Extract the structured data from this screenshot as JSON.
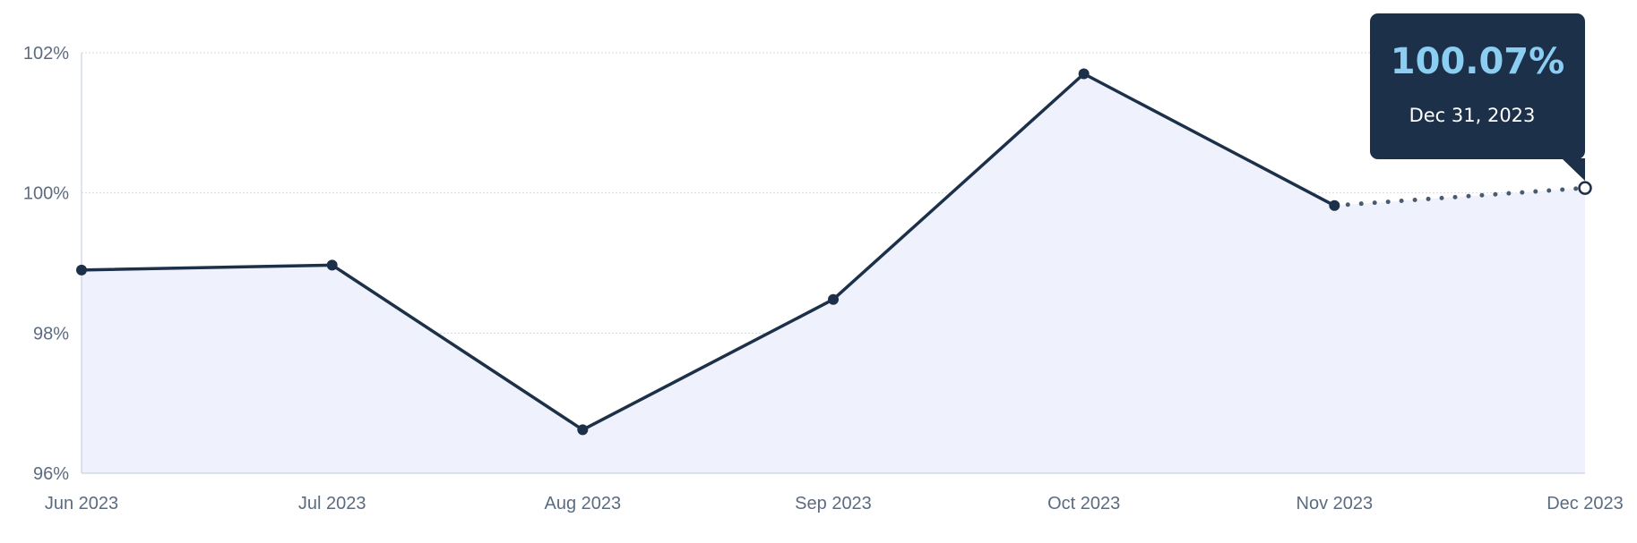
{
  "chart_data": {
    "type": "area",
    "x": [
      "Jun 2023",
      "Jul 2023",
      "Aug 2023",
      "Sep 2023",
      "Oct 2023",
      "Nov 2023",
      "Dec 2023"
    ],
    "series": [
      {
        "values": [
          98.9,
          98.97,
          96.62,
          98.48,
          101.7,
          99.82,
          100.07
        ]
      }
    ],
    "projected_from_index": 5,
    "y_ticks": [
      "96%",
      "98%",
      "100%",
      "102%"
    ],
    "ylim": [
      96,
      102
    ],
    "grid": true,
    "tooltip": {
      "value": "100.07%",
      "date": "Dec 31, 2023"
    },
    "colors": {
      "line": "#1c3049",
      "area": "#eff2fc",
      "grid": "#d5d9e0",
      "tooltip_bg": "#1c3049",
      "tooltip_value": "#8ccdf2",
      "axis_text": "#5b6b80"
    }
  }
}
